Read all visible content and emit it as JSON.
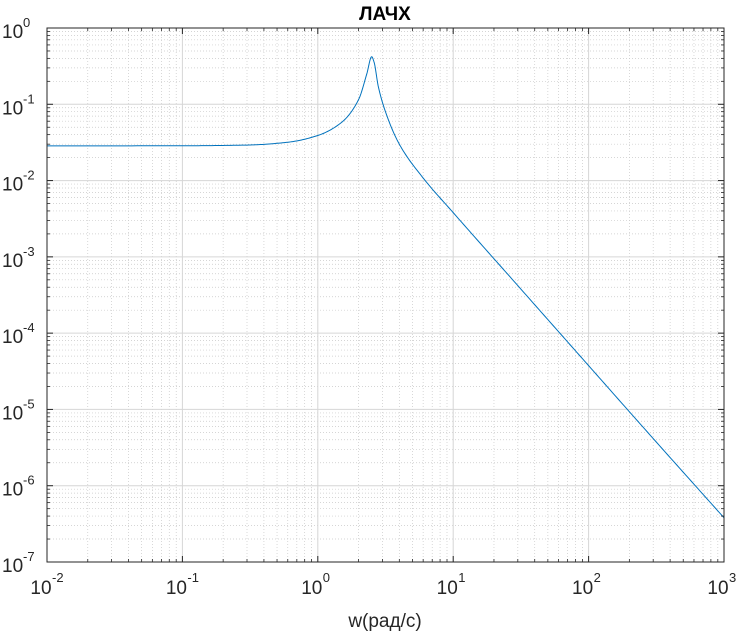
{
  "chart_data": {
    "type": "line",
    "title": "ЛАЧХ",
    "xlabel": "w(рад/с)",
    "ylabel": "",
    "x_scale": "log",
    "y_scale": "log",
    "xlim": [
      0.01,
      1000
    ],
    "ylim": [
      1e-07,
      1
    ],
    "grid": true,
    "minor_grid": true,
    "x_ticks": [
      {
        "value": 0.01,
        "base": "10",
        "exp": "-2"
      },
      {
        "value": 0.1,
        "base": "10",
        "exp": "-1"
      },
      {
        "value": 1,
        "base": "10",
        "exp": "0"
      },
      {
        "value": 10,
        "base": "10",
        "exp": "1"
      },
      {
        "value": 100,
        "base": "10",
        "exp": "2"
      },
      {
        "value": 1000,
        "base": "10",
        "exp": "3"
      }
    ],
    "y_ticks": [
      {
        "value": 1,
        "base": "10",
        "exp": "0"
      },
      {
        "value": 0.1,
        "base": "10",
        "exp": "-1"
      },
      {
        "value": 0.01,
        "base": "10",
        "exp": "-2"
      },
      {
        "value": 0.001,
        "base": "10",
        "exp": "-3"
      },
      {
        "value": 0.0001,
        "base": "10",
        "exp": "-4"
      },
      {
        "value": 1e-05,
        "base": "10",
        "exp": "-5"
      },
      {
        "value": 1e-06,
        "base": "10",
        "exp": "-6"
      },
      {
        "value": 1e-07,
        "base": "10",
        "exp": "-7"
      }
    ],
    "series": [
      {
        "color": "#0072bd",
        "points": [
          [
            0.01,
            0.0285
          ],
          [
            0.1,
            0.0286
          ],
          [
            0.3,
            0.0292
          ],
          [
            0.6,
            0.0318
          ],
          [
            1.0,
            0.039
          ],
          [
            1.5,
            0.058
          ],
          [
            2.0,
            0.115
          ],
          [
            2.3,
            0.25
          ],
          [
            2.5,
            0.42
          ],
          [
            2.6,
            0.36
          ],
          [
            2.8,
            0.17
          ],
          [
            3.2,
            0.075
          ],
          [
            4.0,
            0.03
          ],
          [
            6.0,
            0.0108
          ],
          [
            10,
            0.0038
          ],
          [
            30,
            0.00042
          ],
          [
            100,
            3.75e-05
          ],
          [
            300,
            4.15e-06
          ],
          [
            1000,
            3.8e-07
          ]
        ]
      }
    ]
  }
}
